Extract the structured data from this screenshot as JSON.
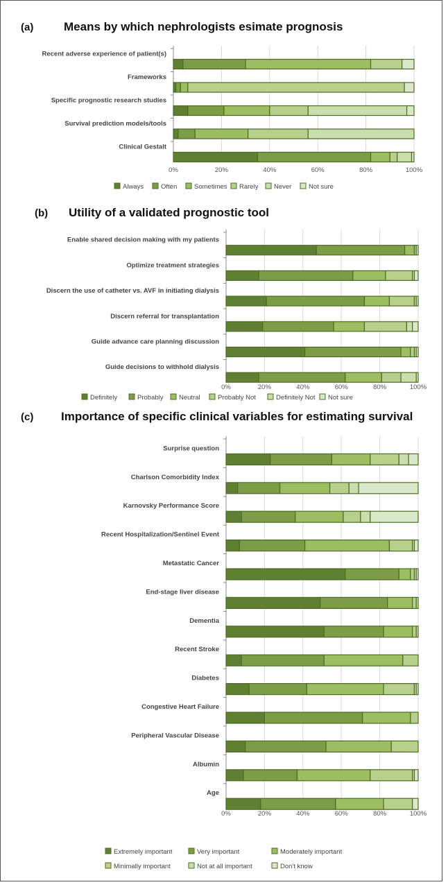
{
  "colors": {
    "dark": "#5f7f33",
    "mid": "#7c9c45",
    "light": "#9cbd60",
    "pale": "#b7d18c",
    "paler": "#c9deac",
    "lightest": "#d9e8c8",
    "border": "#4e6b24",
    "grid": "#d8d8d8"
  },
  "chart_data": [
    {
      "type": "bar",
      "stacked": "100%",
      "orientation": "horizontal",
      "panel": "(a)",
      "title": "Means by which nephrologists esimate prognosis",
      "categories": [
        "Recent adverse experience of patient(s)",
        "Frameworks",
        "Specific prognostic research studies",
        "Survival prediction models/tools",
        "Clinical Gestalt"
      ],
      "series": [
        {
          "name": "Always",
          "values": [
            4,
            1,
            6,
            2,
            35
          ]
        },
        {
          "name": "Often",
          "values": [
            26,
            2,
            15,
            7,
            47
          ]
        },
        {
          "name": "Sometimes",
          "values": [
            52,
            3,
            19,
            22,
            8
          ]
        },
        {
          "name": "Rarely",
          "values": [
            13,
            90,
            16,
            25,
            3
          ]
        },
        {
          "name": "Never",
          "values": [
            0,
            0,
            41,
            44,
            6
          ]
        },
        {
          "name": "Not sure",
          "values": [
            5,
            4,
            3,
            0,
            1
          ]
        }
      ],
      "xticks": [
        "0%",
        "20%",
        "40%",
        "60%",
        "80%",
        "100%"
      ],
      "xlim": [
        0,
        100
      ],
      "grid": true,
      "legend_position": "bottom"
    },
    {
      "type": "bar",
      "stacked": "100%",
      "orientation": "horizontal",
      "panel": "(b)",
      "title": "Utility of a validated prognostic tool",
      "categories": [
        "Enable shared decision making with my patients",
        "Optimize treatment strategies",
        "Discern the use of catheter vs. AVF in initiating dialysis",
        "Discern referral for transplantation",
        "Guide advance care planning discussion",
        "Guide decisions to withhold dialysis"
      ],
      "series": [
        {
          "name": "Definitely",
          "values": [
            47,
            17,
            21,
            19,
            41,
            17
          ]
        },
        {
          "name": "Probably",
          "values": [
            46,
            49,
            51,
            37,
            50,
            45
          ]
        },
        {
          "name": "Neutral",
          "values": [
            5,
            17,
            13,
            16,
            5,
            19
          ]
        },
        {
          "name": "Probably Not",
          "values": [
            1,
            14,
            13,
            22,
            2,
            10
          ]
        },
        {
          "name": "Definitely Not",
          "values": [
            0,
            1,
            1,
            3,
            1,
            8
          ]
        },
        {
          "name": "Not sure",
          "values": [
            1,
            2,
            1,
            3,
            1,
            1
          ]
        }
      ],
      "xticks": [
        "0%",
        "20%",
        "40%",
        "60%",
        "80%",
        "100%"
      ],
      "xlim": [
        0,
        100
      ],
      "grid": true,
      "legend_position": "bottom"
    },
    {
      "type": "bar",
      "stacked": "100%",
      "orientation": "horizontal",
      "panel": "(c)",
      "title": "Importance of specific clinical variables for estimating survival",
      "categories": [
        "Surprise question",
        "Charlson Comorbidity Index",
        "Karnovsky Performance Score",
        "Recent Hospitalization/Sentinel Event",
        "Metastatic Cancer",
        "End-stage liver disease",
        "Dementia",
        "Recent Stroke",
        "Diabetes",
        "Congestive Heart Failure",
        "Peripheral Vascular Disease",
        "Albumin",
        "Age"
      ],
      "series": [
        {
          "name": "Extremely important",
          "values": [
            23,
            6,
            8,
            7,
            62,
            49,
            51,
            8,
            12,
            20,
            10,
            9,
            18
          ]
        },
        {
          "name": "Very important",
          "values": [
            32,
            22,
            28,
            34,
            28,
            35,
            31,
            43,
            30,
            51,
            42,
            28,
            39
          ]
        },
        {
          "name": "Moderately important",
          "values": [
            20,
            26,
            25,
            44,
            6,
            13,
            15,
            41,
            40,
            25,
            34,
            38,
            25
          ]
        },
        {
          "name": "Minimally important",
          "values": [
            15,
            10,
            9,
            12,
            2,
            2,
            2,
            8,
            16,
            4,
            14,
            22,
            15
          ]
        },
        {
          "name": "Not at all important",
          "values": [
            5,
            5,
            5,
            1,
            1,
            1,
            1,
            0,
            1,
            0,
            0,
            1,
            0
          ]
        },
        {
          "name": "Don't know",
          "values": [
            5,
            31,
            25,
            2,
            1,
            0,
            0,
            0,
            1,
            0,
            0,
            2,
            3
          ]
        }
      ],
      "xticks": [
        "0%",
        "20%",
        "40%",
        "60%",
        "80%",
        "100%"
      ],
      "xlim": [
        0,
        100
      ],
      "grid": true,
      "legend_position": "bottom"
    }
  ]
}
